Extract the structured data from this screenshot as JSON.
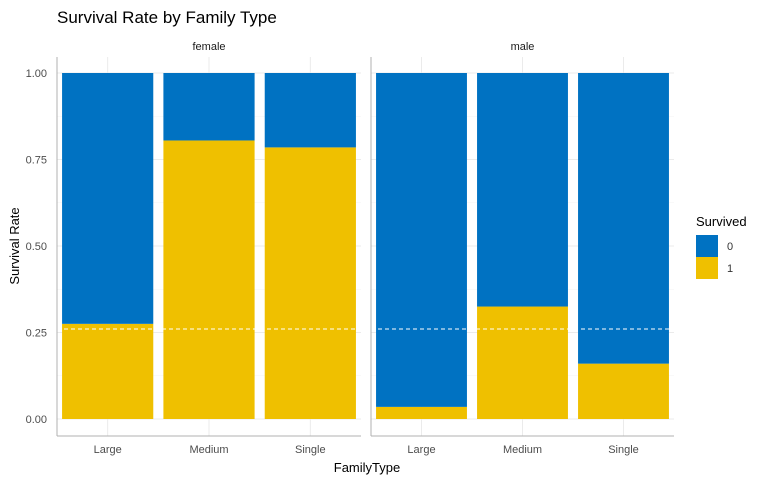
{
  "chart_data": {
    "type": "bar",
    "stacked": true,
    "title": "Survival Rate by Family Type",
    "xlabel": "FamilyType",
    "ylabel": "Survival Rate",
    "ylim": [
      0,
      1
    ],
    "yticks": [
      "0.00",
      "0.25",
      "0.50",
      "0.75",
      "1.00"
    ],
    "ytick_values": [
      0,
      0.25,
      0.5,
      0.75,
      1.0
    ],
    "reference_line": 0.26,
    "grid": true,
    "legend": {
      "title": "Survived",
      "position": "right",
      "entries": [
        "0",
        "1"
      ]
    },
    "colors": {
      "0": "#0072C2",
      "1": "#EFC000"
    },
    "panels": [
      {
        "label": "female",
        "categories": [
          "Large",
          "Medium",
          "Single"
        ],
        "series": [
          {
            "name": "0",
            "values": [
              0.725,
              0.195,
              0.215
            ]
          },
          {
            "name": "1",
            "values": [
              0.275,
              0.805,
              0.785
            ]
          }
        ]
      },
      {
        "label": "male",
        "categories": [
          "Large",
          "Medium",
          "Single"
        ],
        "series": [
          {
            "name": "0",
            "values": [
              0.965,
              0.675,
              0.84
            ]
          },
          {
            "name": "1",
            "values": [
              0.035,
              0.325,
              0.16
            ]
          }
        ]
      }
    ]
  }
}
